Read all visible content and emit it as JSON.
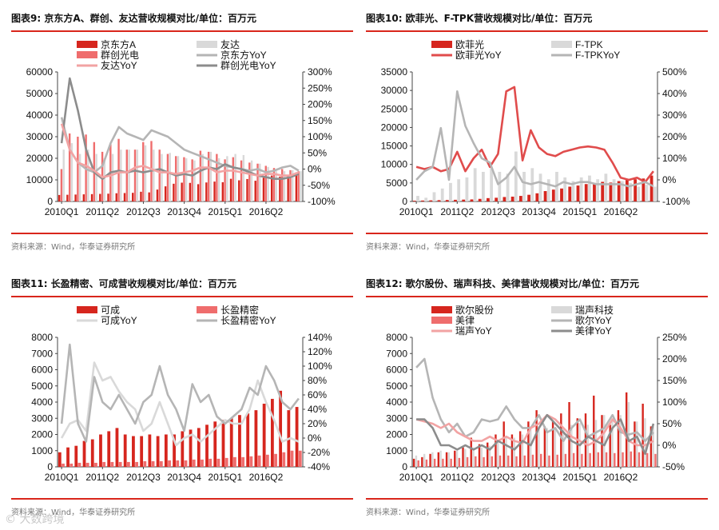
{
  "source_text": "资料来源：Wind，华泰证券研究所",
  "watermark_text": "© 大数跨境",
  "chart_data": [
    {
      "id": "c9",
      "title": "图表9:  京东方A、群创、友达营收规模对比/单位：百万元",
      "type": "bar",
      "x_ticks": [
        "2010Q1",
        "2011Q2",
        "2012Q3",
        "2013Q4",
        "2015Q1",
        "2016Q2"
      ],
      "left_axis": {
        "min": 0,
        "max": 60000,
        "ticks": [
          "0",
          "10000",
          "20000",
          "30000",
          "40000",
          "50000",
          "60000"
        ]
      },
      "right_axis": {
        "min": -100,
        "max": 300,
        "ticks": [
          "-100%",
          "-50%",
          "0%",
          "50%",
          "100%",
          "150%",
          "200%",
          "250%",
          "300%"
        ]
      },
      "bar_series": [
        {
          "name": "京东方A",
          "color": "#d6261e",
          "values": [
            3000,
            3100,
            3200,
            3300,
            3400,
            3500,
            3600,
            3800,
            3900,
            4000,
            4500,
            4200,
            5500,
            7000,
            8200,
            8700,
            8600,
            8000,
            8800,
            9200,
            8900,
            10500,
            9800,
            10400,
            9600,
            11000,
            12000,
            11500,
            12300,
            13500
          ]
        },
        {
          "name": "群创光电",
          "color": "#ef6d6d",
          "values": [
            15000,
            31500,
            30000,
            31000,
            27500,
            23000,
            27000,
            29000,
            24000,
            24000,
            27500,
            28000,
            24000,
            22000,
            21000,
            20500,
            19500,
            23500,
            23000,
            22000,
            19500,
            20500,
            19000,
            18000,
            17500,
            16500,
            15500,
            15000,
            14500,
            14000
          ]
        },
        {
          "name": "友达",
          "color": "#d9d9d9",
          "values": [
            24000,
            27000,
            22000,
            24000,
            22000,
            20000,
            22000,
            24000,
            24000,
            24000,
            26000,
            24000,
            22000,
            22500,
            21000,
            20000,
            19000,
            22000,
            23000,
            20000,
            21000,
            22000,
            21500,
            19000,
            17500,
            16000,
            14000,
            14000,
            14500,
            14000
          ]
        }
      ],
      "line_series": [
        {
          "name": "京东方YoY",
          "color": "#b5b5b5",
          "values": [
            160,
            60,
            20,
            0,
            -10,
            10,
            80,
            130,
            110,
            100,
            90,
            120,
            110,
            100,
            80,
            60,
            50,
            40,
            30,
            20,
            10,
            5,
            0,
            -5,
            0,
            -10,
            -5,
            5,
            10,
            -5
          ]
        },
        {
          "name": "群创光电YoY",
          "color": "#8c8c8c",
          "values": [
            80,
            280,
            180,
            60,
            -10,
            -30,
            -10,
            -5,
            -10,
            -5,
            -10,
            -5,
            0,
            -10,
            -20,
            -15,
            -20,
            -5,
            5,
            0,
            15,
            5,
            0,
            -10,
            -20,
            -25,
            -30,
            -30,
            -25,
            -15
          ]
        },
        {
          "name": "友达YoY",
          "color": "#f2a3a3",
          "values": [
            140,
            60,
            20,
            10,
            -5,
            -25,
            -20,
            -10,
            -10,
            5,
            10,
            0,
            -10,
            -10,
            -15,
            -10,
            -5,
            5,
            5,
            -10,
            -5,
            -5,
            -10,
            -15,
            -20,
            -15,
            -15,
            -20,
            -20,
            -10
          ]
        }
      ],
      "legend": [
        {
          "name": "京东方A",
          "kind": "bar",
          "color": "#d6261e"
        },
        {
          "name": "友达",
          "kind": "bar",
          "color": "#d9d9d9"
        },
        {
          "name": "群创光电",
          "kind": "bar",
          "color": "#ef6d6d"
        },
        {
          "name": "京东方YoY",
          "kind": "line",
          "color": "#b5b5b5"
        },
        {
          "name": "友达YoY",
          "kind": "line",
          "color": "#f2a3a3"
        },
        {
          "name": "群创光电YoY",
          "kind": "line",
          "color": "#8c8c8c"
        }
      ]
    },
    {
      "id": "c10",
      "title": "图表10:  欧菲光、F-TPK营收规模对比/单位：百万元",
      "type": "bar",
      "x_ticks": [
        "2010Q1",
        "2011Q2",
        "2012Q3",
        "2013Q4",
        "2015Q1",
        "2016Q2"
      ],
      "left_axis": {
        "min": 0,
        "max": 35000,
        "ticks": [
          "0",
          "5000",
          "10000",
          "15000",
          "20000",
          "25000",
          "30000",
          "35000"
        ]
      },
      "right_axis": {
        "min": -100,
        "max": 500,
        "ticks": [
          "-100%",
          "0%",
          "100%",
          "200%",
          "300%",
          "400%",
          "500%"
        ]
      },
      "bar_series": [
        {
          "name": "欧菲光",
          "color": "#d6261e",
          "values": [
            200,
            250,
            300,
            350,
            400,
            450,
            500,
            550,
            700,
            900,
            1000,
            1200,
            1300,
            1500,
            1800,
            2200,
            2800,
            3200,
            3500,
            4000,
            4300,
            4700,
            5000,
            5300,
            5100,
            5500,
            5800,
            6000,
            6200,
            7000
          ]
        },
        {
          "name": "F-TPK",
          "color": "#d9d9d9",
          "values": [
            1500,
            1000,
            2500,
            3500,
            5000,
            6000,
            6500,
            9000,
            8000,
            9000,
            8000,
            7500,
            13500,
            8000,
            9000,
            7500,
            6000,
            8000,
            6500,
            5500,
            6500,
            7000,
            6000,
            7500,
            6000,
            5500,
            5000,
            4000,
            4500,
            4000
          ]
        }
      ],
      "line_series": [
        {
          "name": "欧菲光YoY",
          "color": "#e04c4c",
          "values": [
            60,
            50,
            60,
            40,
            50,
            130,
            40,
            100,
            140,
            60,
            120,
            410,
            430,
            90,
            230,
            150,
            120,
            110,
            130,
            140,
            150,
            155,
            150,
            140,
            80,
            10,
            0,
            10,
            -10,
            40
          ]
        },
        {
          "name": "F-TPKYoY",
          "color": "#b5b5b5",
          "values": [
            0,
            40,
            60,
            240,
            0,
            410,
            250,
            170,
            100,
            80,
            -20,
            10,
            60,
            -10,
            -20,
            -10,
            -20,
            -30,
            -10,
            -20,
            -10,
            -10,
            -20,
            -20,
            -20,
            -20,
            -30,
            -20,
            -10,
            -30
          ]
        }
      ],
      "legend": [
        {
          "name": "欧菲光",
          "kind": "bar",
          "color": "#d6261e"
        },
        {
          "name": "F-TPK",
          "kind": "bar",
          "color": "#d9d9d9"
        },
        {
          "name": "欧菲光YoY",
          "kind": "line",
          "color": "#e04c4c"
        },
        {
          "name": "F-TPKYoY",
          "kind": "line",
          "color": "#b5b5b5"
        }
      ]
    },
    {
      "id": "c11",
      "title": "图表11:  长盈精密、可成营收规模对比/单位：百万元",
      "type": "bar",
      "x_ticks": [
        "2010Q1",
        "2011Q2",
        "2012Q3",
        "2013Q4",
        "2015Q1",
        "2016Q2"
      ],
      "left_axis": {
        "min": 0,
        "max": 8000,
        "ticks": [
          "0",
          "1000",
          "2000",
          "3000",
          "4000",
          "5000",
          "6000",
          "7000",
          "8000"
        ]
      },
      "right_axis": {
        "min": -40,
        "max": 140,
        "ticks": [
          "-40%",
          "-20%",
          "0%",
          "20%",
          "40%",
          "60%",
          "80%",
          "100%",
          "120%",
          "140%"
        ]
      },
      "bar_series": [
        {
          "name": "可成",
          "color": "#d6261e",
          "values": [
            900,
            1200,
            1300,
            1600,
            1700,
            2000,
            2200,
            2400,
            2000,
            1900,
            1900,
            2000,
            1900,
            2000,
            2000,
            2200,
            2300,
            2400,
            2600,
            2800,
            2900,
            3000,
            3200,
            3300,
            3500,
            3900,
            4200,
            4700,
            3500,
            3700
          ]
        },
        {
          "name": "长盈精密",
          "color": "#ef6d6d",
          "values": [
            200,
            200,
            250,
            250,
            250,
            300,
            300,
            300,
            300,
            300,
            350,
            350,
            350,
            400,
            400,
            400,
            450,
            450,
            500,
            500,
            550,
            600,
            600,
            650,
            700,
            750,
            800,
            900,
            1000,
            1000
          ]
        }
      ],
      "line_series": [
        {
          "name": "可成YoY",
          "color": "#d9d9d9",
          "values": [
            0,
            20,
            25,
            10,
            105,
            80,
            85,
            65,
            50,
            40,
            10,
            20,
            50,
            20,
            -10,
            0,
            5,
            -5,
            5,
            15,
            25,
            20,
            20,
            40,
            80,
            50,
            25,
            -5,
            0,
            -5
          ]
        },
        {
          "name": "长盈精密YoY",
          "color": "#b5b5b5",
          "values": [
            20,
            130,
            20,
            -5,
            85,
            50,
            40,
            60,
            40,
            20,
            50,
            60,
            100,
            60,
            40,
            10,
            75,
            50,
            60,
            30,
            20,
            30,
            40,
            70,
            60,
            100,
            80,
            50,
            40,
            55
          ]
        }
      ],
      "legend": [
        {
          "name": "可成",
          "kind": "bar",
          "color": "#d6261e"
        },
        {
          "name": "长盈精密",
          "kind": "bar",
          "color": "#ef6d6d"
        },
        {
          "name": "可成YoY",
          "kind": "line",
          "color": "#d9d9d9"
        },
        {
          "name": "长盈精密YoY",
          "kind": "line",
          "color": "#b5b5b5"
        }
      ]
    },
    {
      "id": "c12",
      "title": "图表12:  歌尔股份、瑞声科技、美律营收规模对比/单位：百万元",
      "type": "bar",
      "x_ticks": [
        "2010Q1",
        "2011Q2",
        "2012Q3",
        "2013Q4",
        "2015Q1",
        "2016Q2"
      ],
      "left_axis": {
        "min": 0,
        "max": 8000,
        "ticks": [
          "0",
          "1000",
          "2000",
          "3000",
          "4000",
          "5000",
          "6000",
          "7000",
          "8000"
        ]
      },
      "right_axis": {
        "min": -50,
        "max": 250,
        "ticks": [
          "-50%",
          "0%",
          "50%",
          "100%",
          "150%",
          "200%",
          "250%"
        ]
      },
      "bar_series": [
        {
          "name": "歌尔股份",
          "color": "#d6261e",
          "values": [
            500,
            600,
            800,
            900,
            900,
            1000,
            1200,
            1800,
            1400,
            1500,
            2000,
            2800,
            2000,
            2200,
            2800,
            3500,
            2500,
            2800,
            3300,
            4000,
            3000,
            3300,
            4400,
            3200,
            2600,
            3500,
            4600,
            2800,
            3900,
            2500
          ]
        },
        {
          "name": "瑞声科技",
          "color": "#d9d9d9",
          "values": [
            700,
            800,
            900,
            1000,
            900,
            1000,
            1100,
            1200,
            1200,
            1300,
            1500,
            1800,
            1800,
            2000,
            2500,
            2500,
            2400,
            2300,
            2400,
            2600,
            2700,
            2600,
            2900,
            3200,
            3000,
            3200,
            4000,
            2800,
            3000,
            2500
          ]
        },
        {
          "name": "美律",
          "color": "#ef6d6d",
          "values": [
            400,
            450,
            500,
            500,
            500,
            550,
            600,
            650,
            600,
            650,
            700,
            700,
            650,
            700,
            750,
            800,
            700,
            750,
            800,
            850,
            800,
            850,
            900,
            900,
            850,
            900,
            950,
            900,
            850,
            800
          ]
        }
      ],
      "line_series": [
        {
          "name": "歌尔YoY",
          "color": "#b5b5b5",
          "values": [
            180,
            200,
            110,
            60,
            30,
            50,
            20,
            30,
            60,
            55,
            60,
            90,
            60,
            40,
            40,
            70,
            30,
            40,
            10,
            40,
            60,
            20,
            30,
            40,
            70,
            30,
            25,
            30,
            10,
            30
          ]
        },
        {
          "name": "瑞声YoY",
          "color": "#f2a3a3",
          "values": [
            60,
            55,
            50,
            40,
            50,
            30,
            20,
            10,
            10,
            20,
            10,
            20,
            10,
            5,
            40,
            50,
            70,
            60,
            40,
            20,
            10,
            0,
            10,
            30,
            60,
            40,
            10,
            0,
            0,
            10
          ]
        },
        {
          "name": "美律YoY",
          "color": "#8c8c8c",
          "values": [
            60,
            60,
            40,
            0,
            0,
            -10,
            0,
            -10,
            0,
            -10,
            10,
            0,
            -10,
            10,
            0,
            40,
            70,
            50,
            30,
            10,
            0,
            20,
            10,
            0,
            40,
            60,
            10,
            20,
            -20,
            50
          ]
        }
      ],
      "legend": [
        {
          "name": "歌尔股份",
          "kind": "bar",
          "color": "#d6261e"
        },
        {
          "name": "瑞声科技",
          "kind": "bar",
          "color": "#d9d9d9"
        },
        {
          "name": "美律",
          "kind": "bar",
          "color": "#ef6d6d"
        },
        {
          "name": "歌尔YoY",
          "kind": "line",
          "color": "#b5b5b5"
        },
        {
          "name": "瑞声YoY",
          "kind": "line",
          "color": "#f2a3a3"
        },
        {
          "name": "美律YoY",
          "kind": "line",
          "color": "#8c8c8c"
        }
      ]
    }
  ]
}
